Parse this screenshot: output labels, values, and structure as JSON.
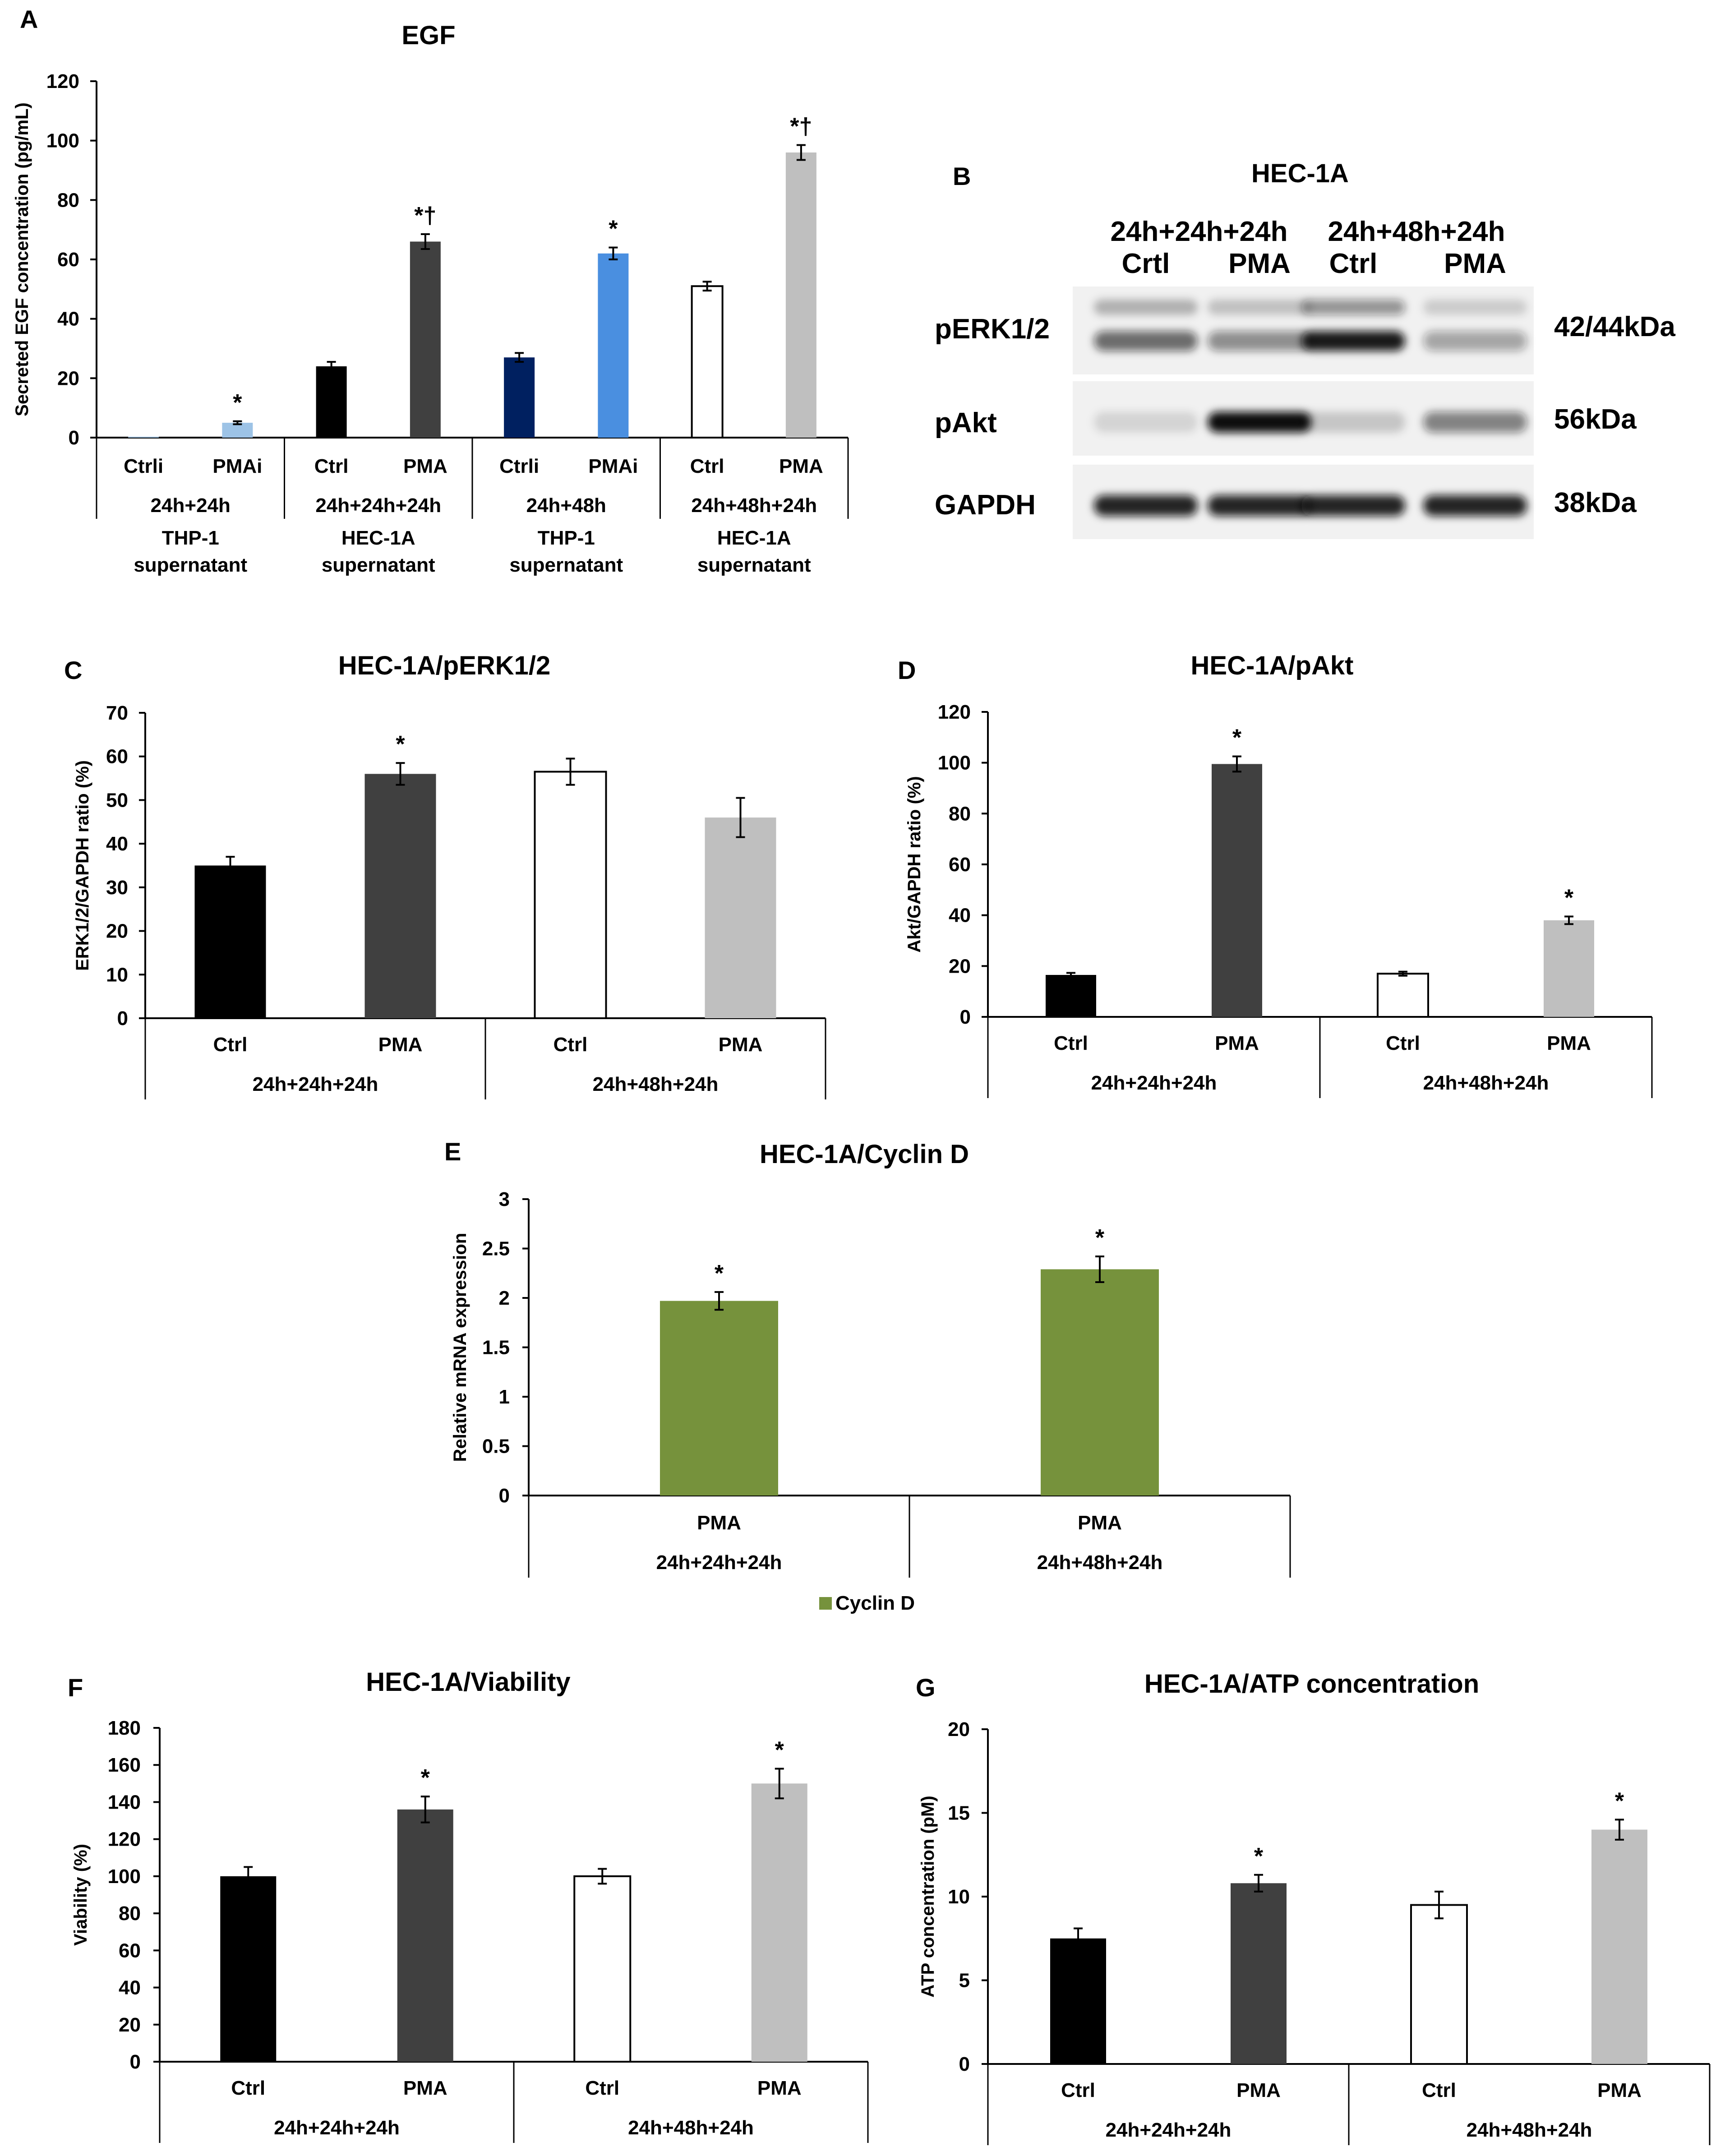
{
  "colors": {
    "black": "#000000",
    "dark_gray": "#404040",
    "light_gray": "#bfbfbf",
    "white": "#ffffff",
    "light_blue": "#9dc3e6",
    "navy": "#002060",
    "sky_blue": "#4a8fe0",
    "olive_green": "#76923c"
  },
  "chart_data": [
    {
      "id": "A",
      "panel_label": "A",
      "type": "bar",
      "title": "EGF",
      "ylabel": "Secreted EGF concentration (pg/mL)",
      "ylim": [
        0,
        120
      ],
      "yticks": [
        0,
        20,
        40,
        60,
        80,
        100,
        120
      ],
      "categories": [
        "Ctrli",
        "PMAi",
        "Ctrl",
        "PMA",
        "Ctrli",
        "PMAi",
        "Ctrl",
        "PMA"
      ],
      "values": [
        0.3,
        5,
        24,
        66,
        27,
        62,
        51,
        96
      ],
      "errors": [
        0,
        0.5,
        1.5,
        2.5,
        1.5,
        2,
        1.5,
        2.5
      ],
      "bar_colors": [
        "#9dc3e6",
        "#9dc3e6",
        "#000000",
        "#404040",
        "#002060",
        "#4a8fe0",
        "#ffffff",
        "#bfbfbf"
      ],
      "annotations": [
        "",
        "*",
        "",
        "*†",
        "",
        "*",
        "",
        "*†"
      ],
      "groups": [
        {
          "label": "24h+24h",
          "sublabel_1": "THP-1",
          "sublabel_2": "supernatant",
          "span": 2
        },
        {
          "label": "24h+24h+24h",
          "sublabel_1": "HEC-1A",
          "sublabel_2": "supernatant",
          "span": 2
        },
        {
          "label": "24h+48h",
          "sublabel_1": "THP-1",
          "sublabel_2": "supernatant",
          "span": 2
        },
        {
          "label": "24h+48h+24h",
          "sublabel_1": "HEC-1A",
          "sublabel_2": "supernatant",
          "span": 2
        }
      ]
    },
    {
      "id": "C",
      "panel_label": "C",
      "type": "bar",
      "title": "HEC-1A/pERK1/2",
      "ylabel": "ERK1/2/GAPDH ratio (%)",
      "ylim": [
        0,
        70
      ],
      "yticks": [
        0,
        10,
        20,
        30,
        40,
        50,
        60,
        70
      ],
      "categories": [
        "Ctrl",
        "PMA",
        "Ctrl",
        "PMA"
      ],
      "values": [
        35,
        56,
        56.5,
        46
      ],
      "errors": [
        2,
        2.5,
        3,
        4.5
      ],
      "bar_colors": [
        "#000000",
        "#404040",
        "#ffffff",
        "#bfbfbf"
      ],
      "annotations": [
        "",
        "*",
        "",
        ""
      ],
      "groups": [
        {
          "label": "24h+24h+24h",
          "span": 2
        },
        {
          "label": "24h+48h+24h",
          "span": 2
        }
      ]
    },
    {
      "id": "D",
      "panel_label": "D",
      "type": "bar",
      "title": "HEC-1A/pAkt",
      "ylabel": "Akt/GAPDH ratio (%)",
      "ylim": [
        0,
        120
      ],
      "yticks": [
        0,
        20,
        40,
        60,
        80,
        100,
        120
      ],
      "categories": [
        "Ctrl",
        "PMA",
        "Ctrl",
        "PMA"
      ],
      "values": [
        16.5,
        99.5,
        17,
        38
      ],
      "errors": [
        0.8,
        3,
        0.8,
        1.5
      ],
      "bar_colors": [
        "#000000",
        "#404040",
        "#ffffff",
        "#bfbfbf"
      ],
      "annotations": [
        "",
        "*",
        "",
        "*"
      ],
      "groups": [
        {
          "label": "24h+24h+24h",
          "span": 2
        },
        {
          "label": "24h+48h+24h",
          "span": 2
        }
      ]
    },
    {
      "id": "E",
      "panel_label": "E",
      "type": "bar",
      "title": "HEC-1A/Cyclin D",
      "ylabel": "Relative mRNA expression",
      "ylim": [
        0,
        3
      ],
      "yticks": [
        0,
        0.5,
        1,
        1.5,
        2,
        2.5,
        3
      ],
      "categories": [
        "PMA",
        "PMA"
      ],
      "values": [
        1.97,
        2.29
      ],
      "errors": [
        0.09,
        0.13
      ],
      "bar_colors": [
        "#76923c",
        "#76923c"
      ],
      "annotations": [
        "*",
        "*"
      ],
      "groups": [
        {
          "label": "24h+24h+24h",
          "span": 1
        },
        {
          "label": "24h+48h+24h",
          "span": 1
        }
      ],
      "legend": [
        {
          "name": "Cyclin D",
          "color": "#76923c"
        }
      ],
      "legend_position": "bottom"
    },
    {
      "id": "F",
      "panel_label": "F",
      "type": "bar",
      "title": "HEC-1A/Viability",
      "ylabel": "Viability (%)",
      "ylim": [
        0,
        180
      ],
      "yticks": [
        0,
        20,
        40,
        60,
        80,
        100,
        120,
        140,
        160,
        180
      ],
      "categories": [
        "Ctrl",
        "PMA",
        "Ctrl",
        "PMA"
      ],
      "values": [
        100,
        136,
        100,
        150
      ],
      "errors": [
        5,
        7,
        4,
        8
      ],
      "bar_colors": [
        "#000000",
        "#404040",
        "#ffffff",
        "#bfbfbf"
      ],
      "annotations": [
        "",
        "*",
        "",
        "*"
      ],
      "groups": [
        {
          "label": "24h+24h+24h",
          "span": 2
        },
        {
          "label": "24h+48h+24h",
          "span": 2
        }
      ]
    },
    {
      "id": "G",
      "panel_label": "G",
      "type": "bar",
      "title": "HEC-1A/ATP concentration",
      "ylabel": "ATP concentration (pM)",
      "ylim": [
        0,
        20
      ],
      "yticks": [
        0,
        5,
        10,
        15,
        20
      ],
      "categories": [
        "Ctrl",
        "PMA",
        "Ctrl",
        "PMA"
      ],
      "values": [
        7.5,
        10.8,
        9.5,
        14
      ],
      "errors": [
        0.6,
        0.5,
        0.8,
        0.6
      ],
      "bar_colors": [
        "#000000",
        "#404040",
        "#ffffff",
        "#bfbfbf"
      ],
      "annotations": [
        "",
        "*",
        "",
        "*"
      ],
      "groups": [
        {
          "label": "24h+24h+24h",
          "span": 2
        },
        {
          "label": "24h+48h+24h",
          "span": 2
        }
      ]
    }
  ],
  "western_blot": {
    "panel_label": "B",
    "title": "HEC-1A",
    "group_labels": [
      "24h+24h+24h",
      "24h+48h+24h"
    ],
    "lane_labels": [
      "Crtl",
      "PMA",
      "Ctrl",
      "PMA"
    ],
    "rows": [
      {
        "protein": "pERK1/2",
        "size": "42/44kDa",
        "intensities": [
          0.6,
          0.45,
          0.95,
          0.35
        ]
      },
      {
        "protein": "pAkt",
        "size": "56kDa",
        "intensities": [
          0.12,
          1.0,
          0.18,
          0.5
        ]
      },
      {
        "protein": "GAPDH",
        "size": "38kDa",
        "intensities": [
          0.9,
          0.9,
          0.9,
          0.9
        ]
      }
    ]
  }
}
